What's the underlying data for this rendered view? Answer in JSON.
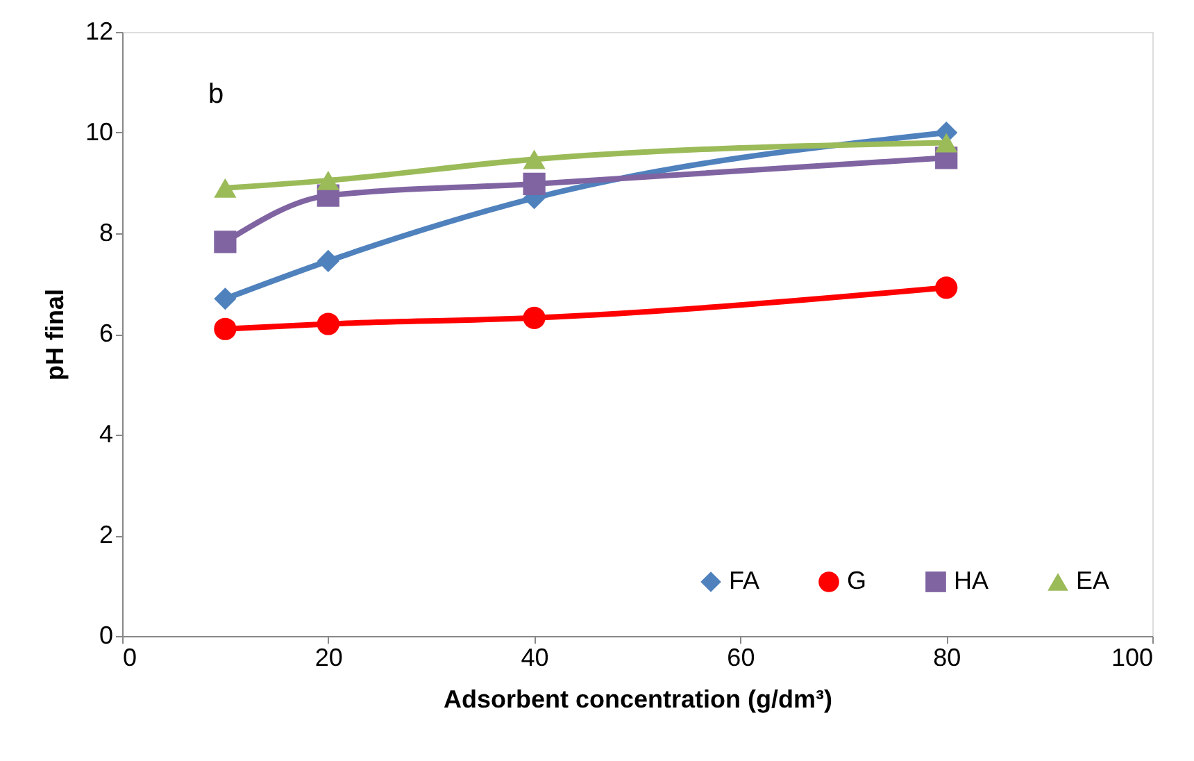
{
  "chart_data": {
    "type": "line",
    "xlabel": "Adsorbent concentration (g/dm³)",
    "ylabel": "pH final",
    "annotations": [
      "b"
    ],
    "x": [
      10,
      20,
      40,
      80
    ],
    "series": [
      {
        "name": "FA",
        "color": "#4f81bd",
        "marker": "diamond",
        "values": [
          6.7,
          7.45,
          8.7,
          10.0
        ]
      },
      {
        "name": "G",
        "color": "#ff0000",
        "marker": "circle",
        "values": [
          6.1,
          6.2,
          6.32,
          6.92
        ]
      },
      {
        "name": "HA",
        "color": "#8064a2",
        "marker": "square",
        "values": [
          7.83,
          8.75,
          8.98,
          9.5
        ]
      },
      {
        "name": "EA",
        "color": "#9bbb59",
        "marker": "triangle",
        "values": [
          8.9,
          9.05,
          9.47,
          9.8
        ]
      }
    ],
    "xlim": [
      0,
      100
    ],
    "xticks": [
      0,
      20,
      40,
      60,
      80,
      100
    ],
    "ylim": [
      0,
      12
    ],
    "yticks": [
      0,
      2,
      4,
      6,
      8,
      10,
      12
    ],
    "grid": false,
    "legend": "bottom right",
    "line_style": "solid"
  }
}
